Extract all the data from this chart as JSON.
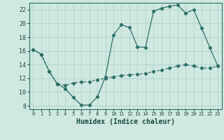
{
  "xlabel": "Humidex (Indice chaleur)",
  "background_color": "#cfe8e0",
  "line_color": "#2d7068",
  "grid_color": "#afd4cc",
  "xlim": [
    -0.5,
    23.5
  ],
  "ylim": [
    7.5,
    23.0
  ],
  "yticks": [
    8,
    10,
    12,
    14,
    16,
    18,
    20,
    22
  ],
  "xticks": [
    0,
    1,
    2,
    3,
    4,
    5,
    6,
    7,
    8,
    9,
    10,
    11,
    12,
    13,
    14,
    15,
    16,
    17,
    18,
    19,
    20,
    21,
    22,
    23
  ],
  "series1_x": [
    0,
    1,
    2,
    3,
    4,
    5,
    6,
    7,
    8,
    9,
    10,
    11,
    12,
    13,
    14,
    15,
    16,
    17,
    18,
    19,
    20,
    21,
    22,
    23
  ],
  "series1_y": [
    16.2,
    15.5,
    13.0,
    11.2,
    10.5,
    9.2,
    8.1,
    8.1,
    9.3,
    12.2,
    18.3,
    19.8,
    19.4,
    16.6,
    16.5,
    21.8,
    22.2,
    22.5,
    22.7,
    21.5,
    22.0,
    19.3,
    16.5,
    13.8
  ],
  "series2_x": [
    0,
    1,
    2,
    3,
    4,
    5,
    6,
    7,
    8,
    9,
    10,
    11,
    12,
    13,
    14,
    15,
    16,
    17,
    18,
    19,
    20,
    21,
    22,
    23
  ],
  "series2_y": [
    16.2,
    15.5,
    13.0,
    11.2,
    11.0,
    11.3,
    11.5,
    11.5,
    11.8,
    12.0,
    12.2,
    12.4,
    12.5,
    12.6,
    12.7,
    13.0,
    13.2,
    13.5,
    13.8,
    14.0,
    13.8,
    13.5,
    13.5,
    13.8
  ],
  "xlabel_fontsize": 7,
  "tick_fontsize": 5.5,
  "tick_color": "#1a4a44"
}
